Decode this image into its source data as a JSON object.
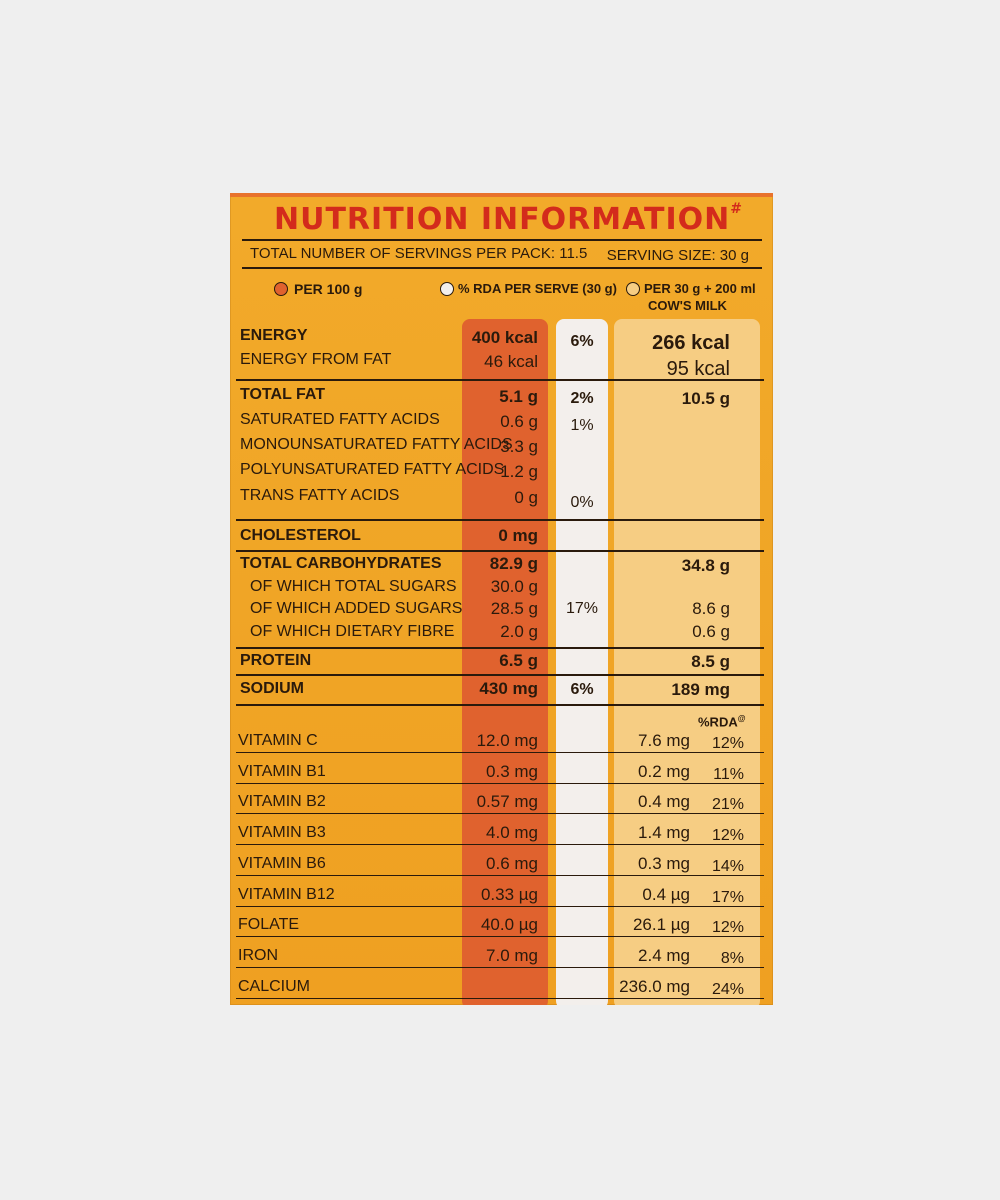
{
  "title": "NUTRITION INFORMATION",
  "title_mark": "#",
  "servings_per_pack": "TOTAL NUMBER OF SERVINGS PER PACK: 11.5",
  "serving_size": "SERVING SIZE: 30 g",
  "columns": {
    "per100": "PER 100 g",
    "rda": "% RDA PER SERVE (30 g)",
    "milk_line1": "PER 30 g + 200 ml",
    "milk_line2": "COW'S MILK",
    "rda_header": "%RDA",
    "rda_header_mark": "@"
  },
  "colors": {
    "per100": "#e0622e",
    "rda": "#f3efec",
    "milk": "#f6cd83",
    "title": "#d32b1c",
    "panel": "#f0a526"
  },
  "rows": {
    "energy": {
      "label": "ENERGY",
      "per100": "400 kcal",
      "rda": "6%",
      "milk": "266 kcal"
    },
    "energy_fat": {
      "label": "ENERGY FROM FAT",
      "per100": "46 kcal",
      "milk": "95 kcal"
    },
    "total_fat": {
      "label": "TOTAL FAT",
      "per100": "5.1 g",
      "rda": "2%",
      "milk": "10.5 g"
    },
    "sfa": {
      "label": "SATURATED FATTY ACIDS",
      "per100": "0.6 g",
      "rda": "1%"
    },
    "mufa": {
      "label": "MONOUNSATURATED FATTY ACIDS",
      "per100": "3.3 g"
    },
    "pufa": {
      "label": "POLYUNSATURATED FATTY ACIDS",
      "per100": "1.2 g"
    },
    "tfa": {
      "label": "TRANS FATTY ACIDS",
      "per100": "0 g",
      "rda": "0%"
    },
    "cholesterol": {
      "label": "CHOLESTEROL",
      "per100": "0 mg"
    },
    "carbs": {
      "label": "TOTAL CARBOHYDRATES",
      "per100": "82.9 g",
      "milk": "34.8 g"
    },
    "total_sugars": {
      "label": "OF WHICH TOTAL SUGARS",
      "per100": "30.0 g"
    },
    "added_sugars": {
      "label": "OF WHICH ADDED SUGARS",
      "per100": "28.5 g",
      "rda": "17%",
      "milk": "8.6 g"
    },
    "fibre": {
      "label": "OF WHICH DIETARY FIBRE",
      "per100": "2.0 g",
      "milk": "0.6 g"
    },
    "protein": {
      "label": "PROTEIN",
      "per100": "6.5 g",
      "milk": "8.5 g"
    },
    "sodium": {
      "label": "SODIUM",
      "per100": "430 mg",
      "rda": "6%",
      "milk": "189 mg"
    }
  },
  "vitamins": [
    {
      "label": "VITAMIN C",
      "per100": "12.0 mg",
      "milk": "7.6 mg",
      "rda": "12%"
    },
    {
      "label": "VITAMIN B1",
      "per100": "0.3 mg",
      "milk": "0.2 mg",
      "rda": "11%"
    },
    {
      "label": "VITAMIN B2",
      "per100": "0.57 mg",
      "milk": "0.4 mg",
      "rda": "21%"
    },
    {
      "label": "VITAMIN B3",
      "per100": "4.0 mg",
      "milk": "1.4 mg",
      "rda": "12%"
    },
    {
      "label": "VITAMIN B6",
      "per100": "0.6 mg",
      "milk": "0.3 mg",
      "rda": "14%"
    },
    {
      "label": "VITAMIN B12",
      "per100": "0.33 µg",
      "milk": "0.4 µg",
      "rda": "17%"
    },
    {
      "label": "FOLATE",
      "per100": "40.0 µg",
      "milk": "26.1 µg",
      "rda": "12%"
    },
    {
      "label": "IRON",
      "per100": "7.0 mg",
      "milk": "2.4 mg",
      "rda": "8%"
    },
    {
      "label": "CALCIUM",
      "per100": "",
      "milk": "236.0 mg",
      "rda": "24%"
    }
  ]
}
